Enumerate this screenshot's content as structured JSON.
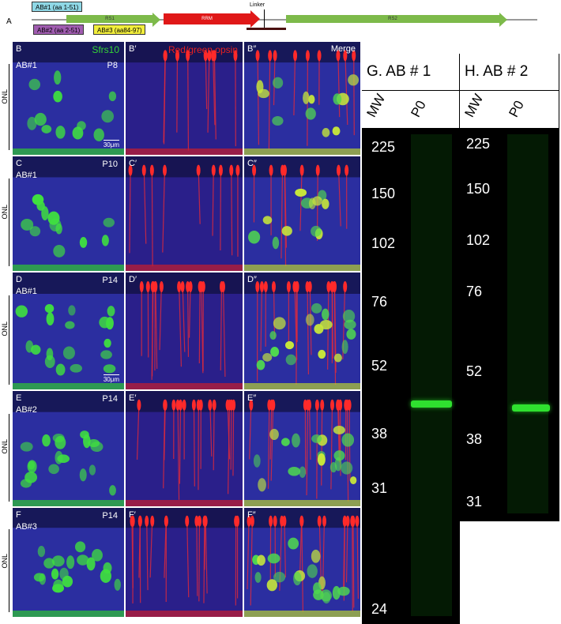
{
  "panel_a": {
    "letter": "A",
    "ab1": "AB#1 (aa 1-51)",
    "ab2": "AB#2 (aa 2-51)",
    "ab3": "AB#3 (aa84-97)",
    "rs1": "RS1",
    "rrm": "RRM",
    "rs2": "RS2",
    "linker": "Linker",
    "colors": {
      "ab1": "#8fd8e6",
      "ab2": "#a05cb0",
      "ab3": "#f2ee3c",
      "rs": "#7dba4a",
      "rrm": "#e01818"
    }
  },
  "rows": [
    {
      "letters": [
        "B",
        "B′",
        "B″"
      ],
      "ab": "AB#1",
      "age": "P8",
      "scale": "30μm",
      "onl": "ONL"
    },
    {
      "letters": [
        "C",
        "C′",
        "C″"
      ],
      "ab": "AB#1",
      "age": "P10",
      "scale": "",
      "onl": "ONL"
    },
    {
      "letters": [
        "D",
        "D′",
        "D″"
      ],
      "ab": "AB#1",
      "age": "P14",
      "scale": "30μm",
      "onl": "ONL"
    },
    {
      "letters": [
        "E",
        "E′",
        "E″"
      ],
      "ab": "AB#2",
      "age": "P14",
      "scale": "",
      "onl": "ONL"
    },
    {
      "letters": [
        "F",
        "F′",
        "F″"
      ],
      "ab": "AB#3",
      "age": "P14",
      "scale": "",
      "onl": "ONL"
    }
  ],
  "channels": {
    "green": "Sfrs10",
    "red": "Red/green opsin",
    "merge": "Merge"
  },
  "blots": [
    {
      "title": "G.   AB # 1",
      "lanes": [
        "MW",
        "P0"
      ],
      "band_kda": 44,
      "mw": [
        "225",
        "150",
        "102",
        "76",
        "52",
        "38",
        "31",
        "24"
      ]
    },
    {
      "title": "H.  AB # 2",
      "lanes": [
        "MW",
        "P0"
      ],
      "band_kda": 43,
      "mw": [
        "225",
        "150",
        "102",
        "76",
        "52",
        "38",
        "31"
      ]
    }
  ]
}
